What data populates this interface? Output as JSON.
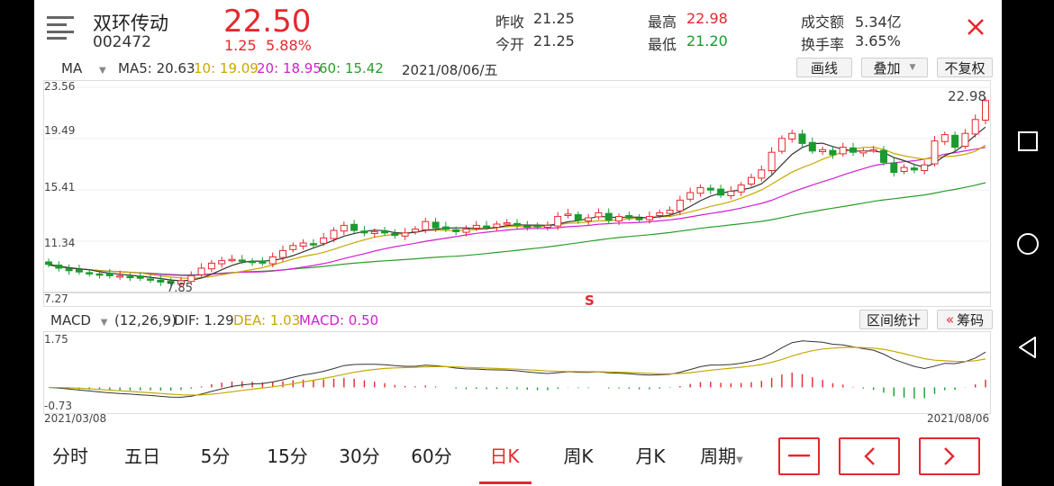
{
  "stock": {
    "name": "双环传动",
    "code": "002472",
    "price": "22.50",
    "change": "1.25",
    "change_pct": "5.88%"
  },
  "quote": {
    "prev_close_label": "昨收",
    "prev_close": "21.25",
    "open_label": "今开",
    "open": "21.25",
    "high_label": "最高",
    "high": "22.98",
    "low_label": "最低",
    "low": "21.20",
    "turnover_label": "成交额",
    "turnover": "5.34亿",
    "turnover_rate_label": "换手率",
    "turnover_rate": "3.65%"
  },
  "ma_bar": {
    "selector": "MA",
    "ma5": "MA5: 20.63",
    "ma10": "10: 19.09",
    "ma20": "20: 18.95",
    "ma60": "60: 15.42",
    "date": "2021/08/06/五",
    "draw_label": "画线",
    "overlay_label": "叠加",
    "adjust_label": "不复权"
  },
  "kline": {
    "yticks": [
      "23.56",
      "19.49",
      "15.41",
      "11.34",
      "7.27"
    ],
    "max_label": "22.98",
    "min_label": "7.85",
    "signal": "S"
  },
  "macd_bar": {
    "selector": "MACD",
    "params": "(12,26,9)",
    "dif": "DIF: 1.29",
    "dea": "DEA: 1.03",
    "macd": "MACD: 0.50",
    "range_stat_label": "区间统计",
    "chips_label": "筹码",
    "chips_prefix": "«"
  },
  "macd_chart": {
    "ytop": "1.75",
    "ybottom": "-0.73",
    "date_start": "2021/03/08",
    "date_end": "2021/08/06"
  },
  "tabs": [
    "分时",
    "五日",
    "5分",
    "15分",
    "30分",
    "60分",
    "日K",
    "周K",
    "月K",
    "周期"
  ],
  "active_tab": "日K",
  "colors": {
    "up": "#e5282e",
    "down": "#1a9b2f",
    "ma5": "#333333",
    "ma10": "#c8a800",
    "ma20": "#d21fd2",
    "ma60": "#2a9d2a"
  },
  "chart_data": {
    "type": "candlestick",
    "x_range": [
      "2021/03/08",
      "2021/08/06"
    ],
    "ylim": [
      7.27,
      23.56
    ],
    "y_ticks": [
      7.27,
      11.34,
      15.41,
      19.49,
      23.56
    ],
    "candles_approx_close": [
      9.5,
      9.2,
      9.0,
      8.9,
      8.8,
      8.7,
      8.6,
      8.6,
      8.5,
      8.4,
      8.3,
      8.1,
      8.0,
      8.2,
      8.6,
      9.2,
      9.6,
      9.8,
      9.9,
      9.8,
      9.7,
      9.6,
      10.1,
      10.6,
      11.0,
      11.2,
      11.1,
      11.6,
      12.2,
      12.6,
      12.2,
      12.0,
      12.1,
      12.0,
      11.8,
      12.0,
      12.3,
      12.9,
      12.4,
      12.3,
      12.1,
      12.3,
      12.6,
      12.5,
      12.7,
      12.8,
      12.6,
      12.5,
      12.5,
      12.6,
      13.3,
      13.5,
      13.0,
      13.2,
      13.6,
      13.0,
      13.3,
      13.2,
      13.1,
      13.3,
      13.6,
      13.8,
      14.6,
      15.2,
      15.6,
      15.4,
      15.0,
      15.3,
      15.8,
      16.4,
      17.0,
      18.4,
      19.5,
      19.9,
      19.1,
      18.5,
      18.6,
      18.2,
      18.8,
      18.4,
      18.5,
      18.6,
      17.6,
      16.8,
      17.2,
      17.0,
      17.4,
      19.3,
      19.8,
      18.8,
      19.9,
      21.0,
      22.5
    ],
    "ma_latest": {
      "MA5": 20.63,
      "MA10": 19.09,
      "MA20": 18.95,
      "MA60": 15.42
    },
    "annotations": [
      {
        "label": "22.98",
        "type": "high"
      },
      {
        "label": "7.85",
        "type": "low"
      },
      {
        "label": "S",
        "type": "signal"
      }
    ],
    "macd": {
      "ylim": [
        -0.73,
        1.75
      ],
      "latest": {
        "DIF": 1.29,
        "DEA": 1.03,
        "MACD": 0.5
      }
    }
  }
}
